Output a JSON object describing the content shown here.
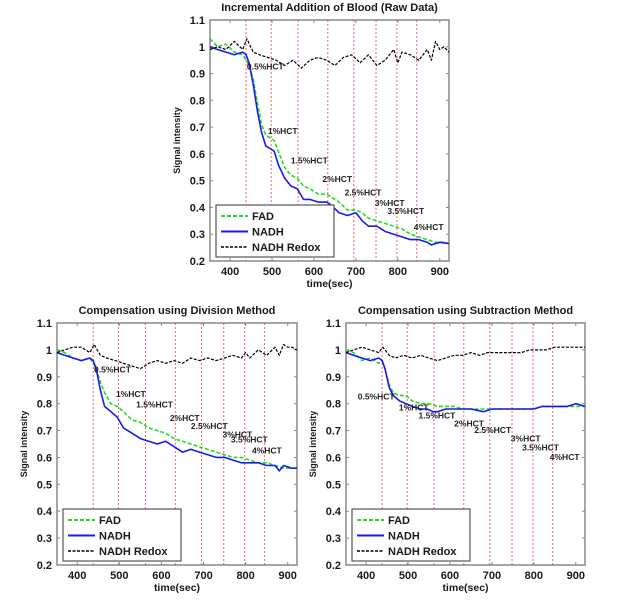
{
  "figure": {
    "colors": {
      "fad": "#22dd22",
      "nadh": "#1a1aee",
      "redox": "#000000",
      "marker": "#ee3333",
      "axis": "#888888"
    }
  },
  "chart_data": [
    {
      "id": "raw",
      "type": "line",
      "title": "Incremental Addition of Blood (Raw Data)",
      "xlabel": "time(sec)",
      "ylabel": "Signal intensity",
      "xlim": [
        352,
        922
      ],
      "ylim": [
        0.2,
        1.1
      ],
      "xticks": [
        400,
        500,
        600,
        700,
        800,
        900
      ],
      "yticks": [
        0.2,
        0.3,
        0.4,
        0.5,
        0.6,
        0.7,
        0.8,
        0.9,
        1,
        1.1
      ],
      "ytick_labels": [
        "0.2",
        "0.3",
        "0.4",
        "0.5",
        "0.6",
        "0.7",
        "0.8",
        "0.9",
        "1",
        "1.1"
      ],
      "legend": {
        "position": "bottom-left",
        "entries": [
          "FAD",
          "NADH",
          "NADH Redox"
        ]
      },
      "grid": false,
      "markers_x": [
        438,
        498,
        562,
        633,
        695,
        748,
        798,
        845
      ],
      "annotations": [
        {
          "text": "0.5%HCT",
          "x": 440,
          "y": 0.915
        },
        {
          "text": "1%HCT",
          "x": 490,
          "y": 0.675
        },
        {
          "text": "1.5%HCT",
          "x": 545,
          "y": 0.565
        },
        {
          "text": "2%HCT",
          "x": 620,
          "y": 0.495
        },
        {
          "text": "2.5%HCT",
          "x": 673,
          "y": 0.445
        },
        {
          "text": "3%HCT",
          "x": 745,
          "y": 0.405
        },
        {
          "text": "3.5%HCT",
          "x": 775,
          "y": 0.375
        },
        {
          "text": "4%HCT",
          "x": 838,
          "y": 0.315
        }
      ],
      "series": [
        {
          "name": "FAD",
          "style": "dashed",
          "x": [
            352,
            370,
            390,
            410,
            430,
            438,
            445,
            455,
            465,
            475,
            485,
            495,
            505,
            515,
            530,
            545,
            560,
            575,
            590,
            610,
            630,
            640,
            660,
            680,
            700,
            715,
            730,
            750,
            770,
            790,
            810,
            830,
            850,
            870,
            890,
            910,
            922
          ],
          "y": [
            1.03,
            1.0,
            1.01,
            0.98,
            0.97,
            0.95,
            0.93,
            0.88,
            0.79,
            0.71,
            0.67,
            0.66,
            0.65,
            0.61,
            0.55,
            0.52,
            0.51,
            0.48,
            0.47,
            0.45,
            0.45,
            0.44,
            0.42,
            0.39,
            0.39,
            0.38,
            0.36,
            0.35,
            0.34,
            0.33,
            0.32,
            0.3,
            0.29,
            0.28,
            0.27,
            0.27,
            0.265
          ]
        },
        {
          "name": "NADH",
          "style": "solid",
          "x": [
            352,
            370,
            390,
            410,
            430,
            438,
            445,
            455,
            465,
            475,
            485,
            495,
            505,
            515,
            530,
            545,
            560,
            575,
            590,
            610,
            630,
            640,
            660,
            680,
            700,
            715,
            730,
            750,
            770,
            790,
            810,
            830,
            850,
            870,
            880,
            900,
            922
          ],
          "y": [
            1.0,
            0.99,
            0.98,
            0.97,
            0.98,
            0.97,
            0.94,
            0.86,
            0.76,
            0.68,
            0.63,
            0.62,
            0.61,
            0.56,
            0.51,
            0.48,
            0.47,
            0.43,
            0.43,
            0.42,
            0.42,
            0.41,
            0.38,
            0.37,
            0.38,
            0.35,
            0.33,
            0.33,
            0.31,
            0.3,
            0.29,
            0.28,
            0.28,
            0.27,
            0.26,
            0.27,
            0.265
          ]
        },
        {
          "name": "NADH Redox",
          "style": "dashed",
          "x": [
            352,
            370,
            390,
            410,
            430,
            440,
            455,
            470,
            490,
            510,
            530,
            550,
            570,
            590,
            610,
            630,
            650,
            670,
            690,
            710,
            730,
            750,
            770,
            790,
            800,
            810,
            830,
            850,
            870,
            880,
            890,
            900,
            910,
            922
          ],
          "y": [
            0.99,
            1.0,
            0.99,
            1.02,
            0.99,
            1.03,
            0.98,
            0.97,
            0.96,
            0.95,
            0.93,
            0.95,
            0.92,
            0.95,
            0.96,
            0.95,
            0.93,
            0.96,
            0.97,
            0.94,
            0.97,
            0.93,
            0.95,
            0.99,
            0.94,
            0.98,
            0.97,
            0.95,
            0.99,
            0.95,
            1.02,
            0.99,
            1.0,
            0.98
          ]
        }
      ]
    },
    {
      "id": "division",
      "type": "line",
      "title": "Compensation using Division Method",
      "xlabel": "time(sec)",
      "ylabel": "Signal intensity",
      "xlim": [
        352,
        922
      ],
      "ylim": [
        0.2,
        1.1
      ],
      "xticks": [
        400,
        500,
        600,
        700,
        800,
        900
      ],
      "yticks": [
        0.2,
        0.3,
        0.4,
        0.5,
        0.6,
        0.7,
        0.8,
        0.9,
        1,
        1.1
      ],
      "ytick_labels": [
        "0.2",
        "0.3",
        "0.4",
        "0.5",
        "0.6",
        "0.7",
        "0.8",
        "0.9",
        "1",
        "1.1"
      ],
      "legend": {
        "position": "bottom-left",
        "entries": [
          "FAD",
          "NADH",
          "NADH Redox"
        ]
      },
      "grid": false,
      "markers_x": [
        438,
        498,
        562,
        633,
        695,
        748,
        798,
        845
      ],
      "annotations": [
        {
          "text": "0.5%HCT",
          "x": 440,
          "y": 0.915
        },
        {
          "text": "1%HCT",
          "x": 492,
          "y": 0.825
        },
        {
          "text": "1.5%HCT",
          "x": 540,
          "y": 0.785
        },
        {
          "text": "2%HCT",
          "x": 620,
          "y": 0.735
        },
        {
          "text": "2.5%HCT",
          "x": 670,
          "y": 0.705
        },
        {
          "text": "3%HCT",
          "x": 745,
          "y": 0.675
        },
        {
          "text": "3.5%HCT",
          "x": 765,
          "y": 0.655
        },
        {
          "text": "4%HCT",
          "x": 815,
          "y": 0.615
        }
      ],
      "series": [
        {
          "name": "FAD",
          "style": "dashed",
          "x": [
            352,
            370,
            390,
            410,
            430,
            438,
            445,
            455,
            465,
            480,
            495,
            510,
            530,
            550,
            570,
            590,
            610,
            630,
            650,
            670,
            690,
            710,
            730,
            750,
            770,
            790,
            810,
            830,
            850,
            870,
            890,
            910,
            922
          ],
          "y": [
            1.0,
            0.99,
            0.97,
            0.96,
            0.97,
            0.95,
            0.93,
            0.88,
            0.84,
            0.8,
            0.79,
            0.77,
            0.74,
            0.73,
            0.71,
            0.7,
            0.69,
            0.67,
            0.66,
            0.65,
            0.64,
            0.63,
            0.62,
            0.61,
            0.6,
            0.6,
            0.59,
            0.58,
            0.58,
            0.57,
            0.56,
            0.56,
            0.56
          ]
        },
        {
          "name": "NADH",
          "style": "solid",
          "x": [
            352,
            370,
            390,
            410,
            430,
            438,
            445,
            455,
            465,
            480,
            495,
            510,
            530,
            550,
            570,
            590,
            610,
            630,
            650,
            670,
            690,
            710,
            730,
            750,
            770,
            790,
            810,
            830,
            850,
            870,
            880,
            890,
            910,
            922
          ],
          "y": [
            0.99,
            0.98,
            0.97,
            0.96,
            0.97,
            0.96,
            0.93,
            0.85,
            0.79,
            0.77,
            0.75,
            0.71,
            0.69,
            0.67,
            0.66,
            0.65,
            0.66,
            0.64,
            0.62,
            0.63,
            0.62,
            0.61,
            0.6,
            0.6,
            0.59,
            0.58,
            0.58,
            0.58,
            0.57,
            0.57,
            0.55,
            0.57,
            0.56,
            0.56
          ]
        },
        {
          "name": "NADH Redox",
          "style": "dashed",
          "x": [
            352,
            370,
            390,
            410,
            430,
            440,
            455,
            470,
            490,
            510,
            530,
            550,
            570,
            590,
            610,
            630,
            650,
            670,
            690,
            710,
            730,
            750,
            770,
            790,
            800,
            810,
            830,
            850,
            870,
            880,
            890,
            900,
            910,
            922
          ],
          "y": [
            0.99,
            1.0,
            1.01,
            1.01,
            0.99,
            1.02,
            0.98,
            0.97,
            0.96,
            0.95,
            0.94,
            0.93,
            0.95,
            0.96,
            0.95,
            0.96,
            0.95,
            0.97,
            0.96,
            0.97,
            0.96,
            0.97,
            0.98,
            0.97,
            0.99,
            0.97,
            1.0,
            0.98,
            1.01,
            0.98,
            1.02,
            1.01,
            1.01,
            1.0
          ]
        }
      ]
    },
    {
      "id": "subtraction",
      "type": "line",
      "title": "Compensation using Subtraction Method",
      "xlabel": "time(sec)",
      "ylabel": "Signal intensity",
      "xlim": [
        352,
        922
      ],
      "ylim": [
        0.2,
        1.1
      ],
      "xticks": [
        400,
        500,
        600,
        700,
        800,
        900
      ],
      "yticks": [
        0.2,
        0.3,
        0.4,
        0.5,
        0.6,
        0.7,
        0.8,
        0.9,
        1,
        1.1
      ],
      "ytick_labels": [
        "0.2",
        "0.3",
        "0.4",
        "0.5",
        "0.6",
        "0.7",
        "0.8",
        "0.9",
        "1",
        "1.1"
      ],
      "legend": {
        "position": "bottom-left",
        "entries": [
          "FAD",
          "NADH",
          "NADH Redox"
        ]
      },
      "grid": false,
      "markers_x": [
        438,
        498,
        562,
        633,
        695,
        748,
        798,
        845
      ],
      "annotations": [
        {
          "text": "0.5%HCT",
          "x": 380,
          "y": 0.815
        },
        {
          "text": "1%HCT",
          "x": 478,
          "y": 0.775
        },
        {
          "text": "1.5%HCT",
          "x": 525,
          "y": 0.745
        },
        {
          "text": "2%HCT",
          "x": 610,
          "y": 0.715
        },
        {
          "text": "2.5%HCT",
          "x": 658,
          "y": 0.69
        },
        {
          "text": "3%HCT",
          "x": 745,
          "y": 0.66
        },
        {
          "text": "3.5%HCT",
          "x": 772,
          "y": 0.625
        },
        {
          "text": "4%HCT",
          "x": 838,
          "y": 0.59
        }
      ],
      "series": [
        {
          "name": "FAD",
          "style": "dashed",
          "x": [
            352,
            370,
            390,
            410,
            430,
            438,
            445,
            455,
            465,
            480,
            495,
            510,
            530,
            550,
            570,
            590,
            610,
            630,
            650,
            680,
            700,
            720,
            740,
            760,
            780,
            800,
            820,
            840,
            860,
            880,
            900,
            922
          ],
          "y": [
            1.0,
            0.99,
            0.96,
            0.97,
            0.95,
            0.96,
            0.93,
            0.87,
            0.84,
            0.83,
            0.83,
            0.81,
            0.8,
            0.8,
            0.79,
            0.79,
            0.79,
            0.78,
            0.78,
            0.78,
            0.78,
            0.78,
            0.78,
            0.78,
            0.78,
            0.78,
            0.79,
            0.79,
            0.79,
            0.79,
            0.79,
            0.79
          ]
        },
        {
          "name": "NADH",
          "style": "solid",
          "x": [
            352,
            370,
            390,
            410,
            430,
            438,
            445,
            455,
            465,
            480,
            495,
            510,
            530,
            545,
            560,
            570,
            590,
            610,
            630,
            650,
            680,
            700,
            720,
            740,
            760,
            780,
            800,
            820,
            840,
            860,
            880,
            900,
            922
          ],
          "y": [
            0.99,
            0.98,
            0.97,
            0.96,
            0.97,
            0.96,
            0.93,
            0.86,
            0.83,
            0.81,
            0.8,
            0.79,
            0.78,
            0.78,
            0.77,
            0.77,
            0.78,
            0.78,
            0.78,
            0.78,
            0.77,
            0.78,
            0.78,
            0.78,
            0.78,
            0.78,
            0.78,
            0.79,
            0.79,
            0.79,
            0.79,
            0.8,
            0.79
          ]
        },
        {
          "name": "NADH Redox",
          "style": "dashed",
          "x": [
            352,
            370,
            390,
            410,
            430,
            440,
            455,
            470,
            490,
            510,
            530,
            550,
            570,
            590,
            610,
            630,
            650,
            670,
            690,
            710,
            730,
            750,
            770,
            790,
            810,
            830,
            850,
            870,
            890,
            910,
            922
          ],
          "y": [
            0.99,
            1.0,
            1.01,
            1.0,
            0.99,
            1.01,
            0.98,
            0.97,
            0.98,
            0.97,
            0.98,
            0.97,
            0.96,
            0.97,
            0.98,
            0.98,
            0.99,
            0.98,
            0.99,
            0.99,
            0.99,
            0.99,
            0.99,
            1.0,
            1.0,
            1.0,
            1.01,
            1.01,
            1.01,
            1.01,
            1.01
          ]
        }
      ]
    }
  ]
}
